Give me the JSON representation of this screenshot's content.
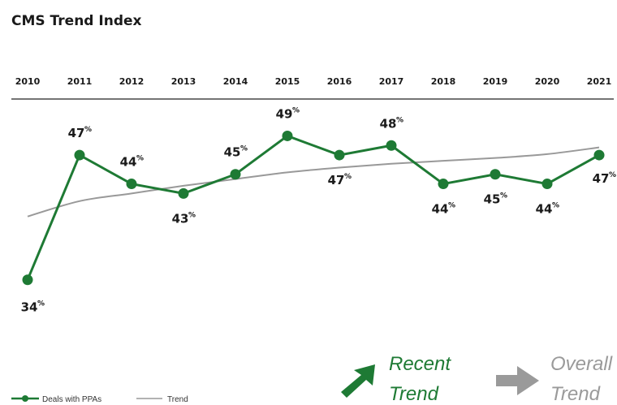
{
  "chart_data": {
    "type": "line",
    "title": "CMS Trend Index",
    "x": [
      "2010",
      "2011",
      "2012",
      "2013",
      "2014",
      "2015",
      "2016",
      "2017",
      "2018",
      "2019",
      "2020",
      "2021"
    ],
    "ylim": [
      30,
      52
    ],
    "series": [
      {
        "name": "Deals with PPAs",
        "color": "#1e7a34",
        "values": [
          34,
          47,
          44,
          43,
          45,
          49,
          47,
          48,
          44,
          45,
          44,
          47
        ],
        "labels": [
          "34",
          "47",
          "44",
          "43",
          "45",
          "49",
          "47",
          "48",
          "44",
          "45",
          "44",
          "47"
        ],
        "label_positions": [
          "below",
          "above",
          "above",
          "below",
          "above",
          "above",
          "below",
          "above",
          "below",
          "below",
          "below",
          "below"
        ],
        "label_suffix": "%"
      },
      {
        "name": "Trend",
        "color": "#999999",
        "values": [
          40.6,
          42.2,
          43.0,
          43.8,
          44.5,
          45.2,
          45.7,
          46.1,
          46.4,
          46.7,
          47.1,
          47.8
        ]
      }
    ],
    "legend": {
      "position": "bottom-left"
    },
    "grid": false
  },
  "callouts": {
    "recent": {
      "line1": "Recent",
      "line2": "Trend",
      "color": "#1e7a34"
    },
    "overall": {
      "line1": "Overall",
      "line2": "Trend",
      "color": "#9a9a9a"
    }
  }
}
